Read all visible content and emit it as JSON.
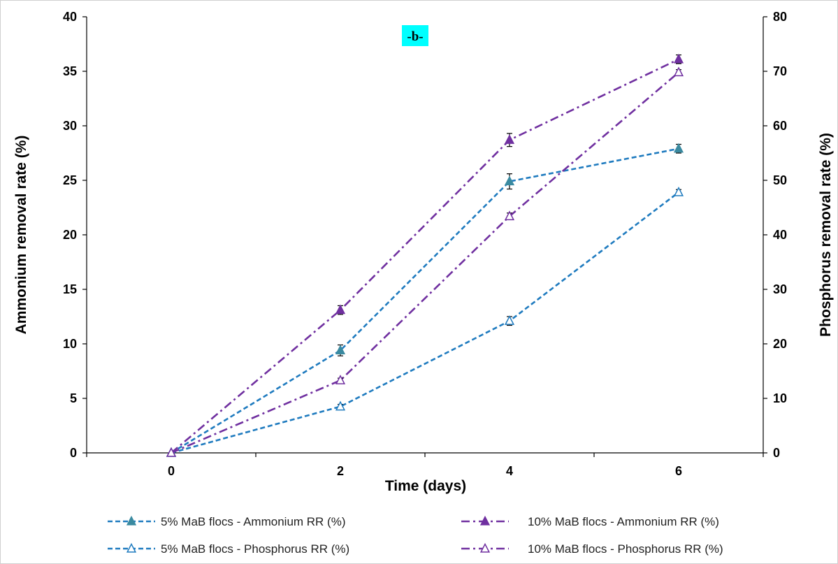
{
  "chart_data": {
    "type": "line",
    "subtitle": "-b-",
    "xlabel": "Time (days)",
    "ylabel_left": "Ammonium  removal rate (%)",
    "ylabel_right": "Phosphorus removal rate (%)",
    "x_ticks": [
      "0",
      "2",
      "4",
      "6"
    ],
    "x": [
      0,
      2,
      4,
      6
    ],
    "xlim": [
      -1,
      7
    ],
    "y_left_ticks": [
      "0",
      "5",
      "10",
      "15",
      "20",
      "25",
      "30",
      "35",
      "40"
    ],
    "ylim_left": [
      0,
      40
    ],
    "y_right_ticks": [
      "0",
      "10",
      "20",
      "30",
      "40",
      "50",
      "60",
      "70",
      "80"
    ],
    "ylim_right": [
      0,
      80
    ],
    "grid": false,
    "legend_position": "bottom",
    "series": [
      {
        "name": "5% MaB flocs - Ammonium RR (%)",
        "axis": "left",
        "values": [
          0,
          9.4,
          24.9,
          27.9
        ],
        "errors": [
          0,
          0.5,
          0.7,
          0.4
        ],
        "color": "#1f7bbf",
        "marker_color": "#3a8aa0",
        "marker": "filled-triangle",
        "dash": "dashed"
      },
      {
        "name": "10% MaB flocs - Ammonium RR (%)",
        "axis": "left",
        "values": [
          0,
          13.1,
          28.7,
          36.1
        ],
        "errors": [
          0,
          0.4,
          0.6,
          0.4
        ],
        "color": "#7030a0",
        "marker_color": "#7030a0",
        "marker": "filled-triangle",
        "dash": "dash-dot"
      },
      {
        "name": "5% MaB flocs - Phosphorus RR (%)",
        "axis": "right",
        "values": [
          0,
          8.5,
          24.2,
          47.8
        ],
        "errors": [
          0,
          0.4,
          0.8,
          0.5
        ],
        "color": "#1f7bbf",
        "marker_color": "#1f7bbf",
        "marker": "open-triangle",
        "dash": "dashed"
      },
      {
        "name": "10% MaB flocs - Phosphorus RR (%)",
        "axis": "right",
        "values": [
          0,
          13.3,
          43.4,
          69.8
        ],
        "errors": [
          0,
          0.4,
          0.6,
          0.5
        ],
        "color": "#7030a0",
        "marker_color": "#7030a0",
        "marker": "open-triangle",
        "dash": "dash-dot"
      }
    ],
    "colors": {
      "subtitle_background": "#00ffff"
    }
  }
}
